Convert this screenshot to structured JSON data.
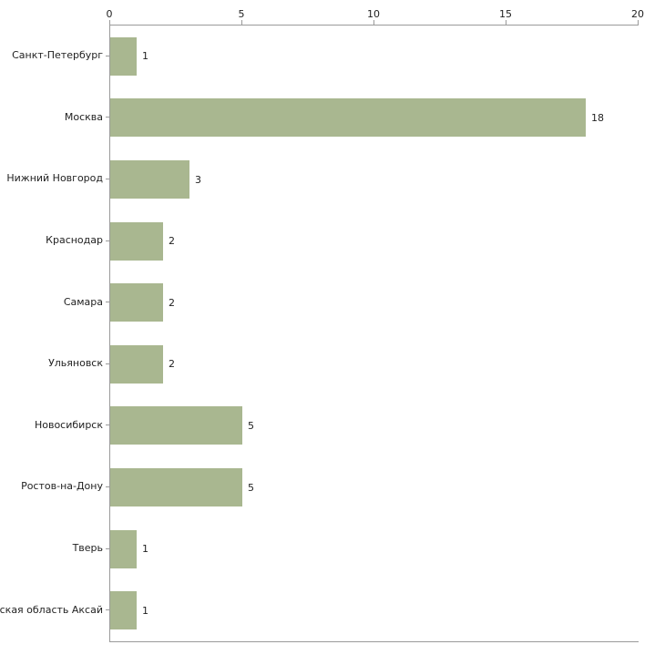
{
  "chart_data": {
    "type": "bar",
    "orientation": "horizontal",
    "title": "",
    "xlabel": "",
    "ylabel": "",
    "categories": [
      "Санкт-Петербург",
      "Москва",
      "Нижний Новгород",
      "Краснодар",
      "Самара",
      "Ульяновск",
      "Новосибирск",
      "Ростов-на-Дону",
      "Тверь",
      "Ростовская область Аксай"
    ],
    "values": [
      1,
      18,
      3,
      2,
      2,
      2,
      5,
      5,
      1,
      1
    ],
    "value_labels": [
      "1",
      "18",
      "3",
      "2",
      "2",
      "2",
      "5",
      "5",
      "1",
      "1"
    ],
    "xlim": [
      0,
      20
    ],
    "xticks": [
      0,
      5,
      10,
      15,
      20
    ],
    "xtick_labels": [
      "0",
      "5",
      "10",
      "15",
      "20"
    ],
    "grid": false,
    "legend": "none",
    "bar_color": "#a9b790",
    "axis_color": "#9a9a9a",
    "background_color": "#ffffff"
  }
}
